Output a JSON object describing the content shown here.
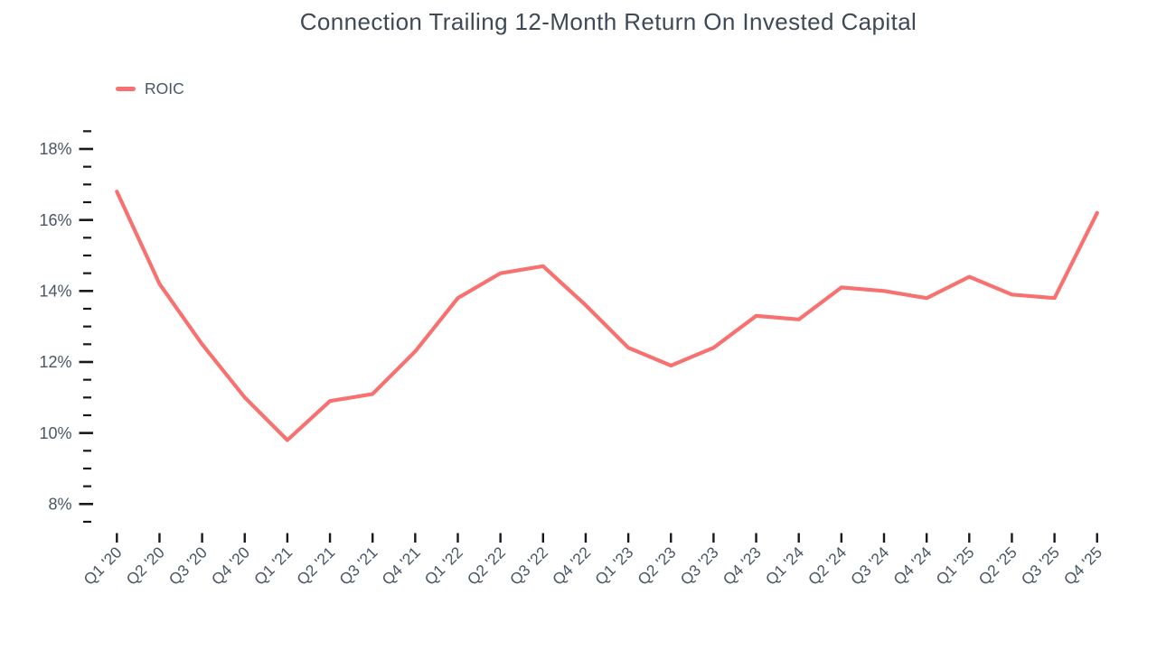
{
  "title": "Connection Trailing 12-Month Return On Invested Capital",
  "legend": {
    "items": [
      {
        "label": "ROIC",
        "color": "#F87171"
      }
    ]
  },
  "colors": {
    "line": "#F87171",
    "title_text": "#3E4956",
    "axis_text": "#4A5565",
    "tick": "#15181D",
    "background": "#FFFFFF"
  },
  "chart_data": {
    "type": "line",
    "title": "Connection Trailing 12-Month Return On Invested Capital",
    "categories": [
      "Q1 '20",
      "Q2 '20",
      "Q3 '20",
      "Q4 '20",
      "Q1 '21",
      "Q2 '21",
      "Q3 '21",
      "Q4 '21",
      "Q1 '22",
      "Q2 '22",
      "Q3 '22",
      "Q4 '22",
      "Q1 '23",
      "Q2 '23",
      "Q3 '23",
      "Q4 '23",
      "Q1 '24",
      "Q2 '24",
      "Q3 '24",
      "Q4 '24",
      "Q1 '25",
      "Q2 '25",
      "Q3 '25",
      "Q4 '25"
    ],
    "series": [
      {
        "name": "ROIC",
        "color": "#F87171",
        "values": [
          16.8,
          14.2,
          12.5,
          11.0,
          9.8,
          10.9,
          11.1,
          12.3,
          13.8,
          14.5,
          14.7,
          13.6,
          12.4,
          11.9,
          12.4,
          13.3,
          13.2,
          14.1,
          14.0,
          13.8,
          14.4,
          13.9,
          13.8,
          16.2
        ]
      }
    ],
    "unit": "%",
    "xlabel": "",
    "ylabel": "",
    "y_axis": {
      "labels": [
        "18%",
        "16%",
        "14%",
        "12%",
        "10%",
        "8%"
      ],
      "values": [
        18,
        16,
        14,
        12,
        10,
        8
      ]
    },
    "ylim": [
      7.5,
      18.5
    ],
    "y_minor_step": 0.5,
    "grid": false,
    "legend_position": "top-left"
  }
}
